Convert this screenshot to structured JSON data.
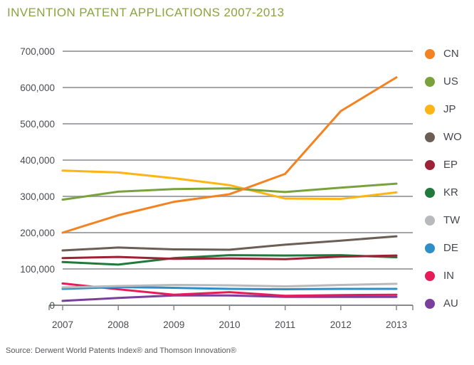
{
  "title": "INVENTION PATENT APPLICATIONS 2007-2013",
  "source": "Source: Derwent World Patents Index® and Thomson Innovation®",
  "colors": {
    "title_text": "#8aa43f",
    "axis_text": "#4a4c50",
    "gridline": "#a4a6a9",
    "axis_line": "#87898c",
    "legend_text": "#45474b"
  },
  "chart_data": {
    "type": "line",
    "title": "INVENTION PATENT APPLICATIONS 2007-2013",
    "x": [
      2007,
      2008,
      2009,
      2010,
      2011,
      2012,
      2013
    ],
    "x_tick_labels": [
      "2007",
      "2008",
      "2009",
      "2010",
      "2011",
      "2012",
      "2013"
    ],
    "xlabel": "",
    "ylabel": "",
    "ylim": [
      0,
      700000
    ],
    "y_tick_values": [
      0,
      100000,
      200000,
      300000,
      400000,
      500000,
      600000,
      700000
    ],
    "y_tick_labels": [
      "0",
      "100,000",
      "200,000",
      "300,000",
      "400,000",
      "500,000",
      "600,000",
      "700,000"
    ],
    "grid": "horizontal",
    "legend_position": "right",
    "series": [
      {
        "name": "CN",
        "color": "#f58220",
        "values": [
          200000,
          248000,
          285000,
          306000,
          362000,
          535000,
          628000
        ]
      },
      {
        "name": "US",
        "color": "#7aa23c",
        "values": [
          291000,
          313000,
          320000,
          322000,
          312000,
          324000,
          335000
        ]
      },
      {
        "name": "JP",
        "color": "#fdb515",
        "values": [
          371000,
          366000,
          350000,
          331000,
          294000,
          293000,
          311000
        ]
      },
      {
        "name": "WO",
        "color": "#6b5e55",
        "values": [
          151000,
          159000,
          154000,
          153000,
          167000,
          178000,
          190000
        ]
      },
      {
        "name": "EP",
        "color": "#9d2235",
        "values": [
          130000,
          133000,
          128000,
          129000,
          127000,
          134000,
          137000
        ]
      },
      {
        "name": "KR",
        "color": "#207a3c",
        "values": [
          119000,
          112000,
          130000,
          138000,
          137000,
          138000,
          132000
        ]
      },
      {
        "name": "TW",
        "color": "#b7b9bb",
        "values": [
          49000,
          53000,
          56000,
          55000,
          52000,
          56000,
          59000
        ]
      },
      {
        "name": "DE",
        "color": "#2e8fc8",
        "values": [
          45000,
          50000,
          48000,
          45000,
          44000,
          45000,
          45000
        ]
      },
      {
        "name": "IN",
        "color": "#e61b59",
        "values": [
          60000,
          44000,
          29000,
          36000,
          26000,
          28000,
          29000
        ]
      },
      {
        "name": "AU",
        "color": "#7a3f9d",
        "values": [
          12000,
          20000,
          27000,
          27000,
          23000,
          23000,
          23000
        ]
      }
    ]
  }
}
